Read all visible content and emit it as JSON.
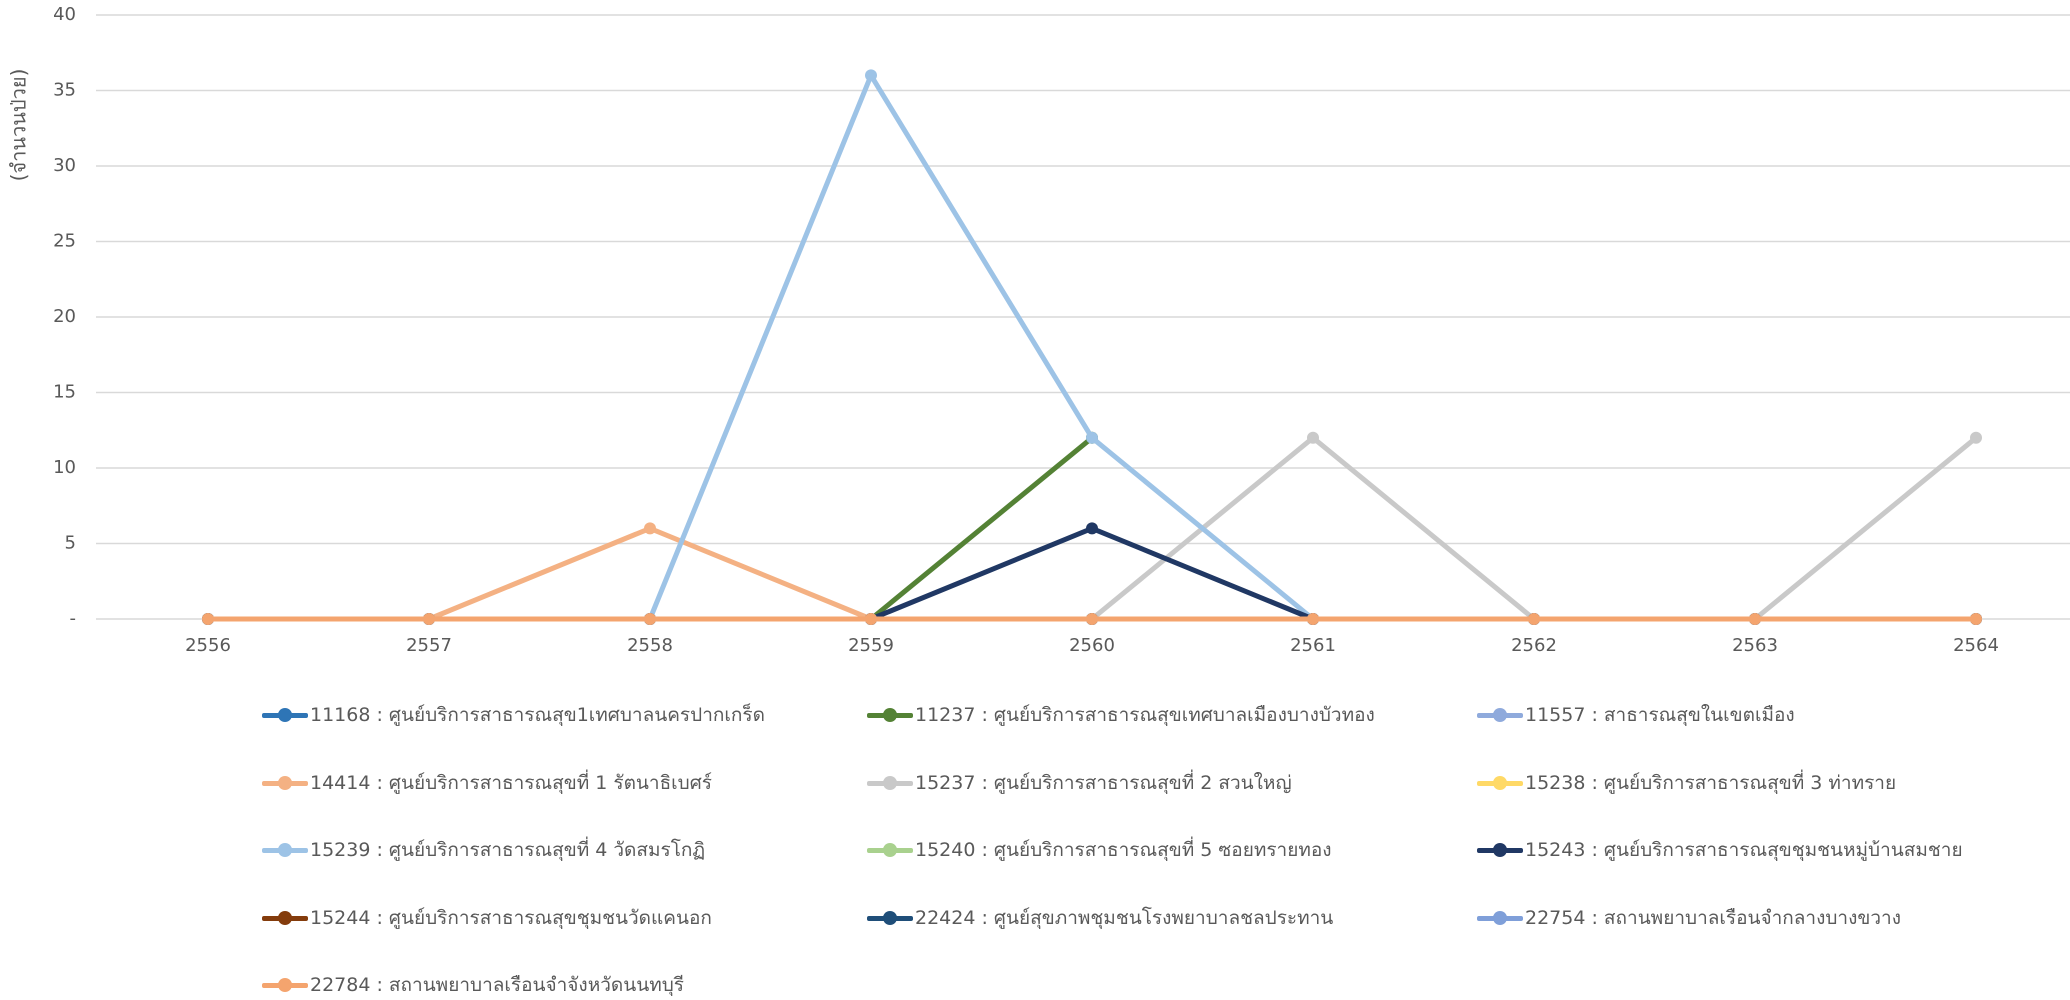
{
  "chart_data": {
    "type": "line",
    "title": "",
    "xlabel": "",
    "ylabel": "(จำนวนป่วย)",
    "x": [
      "2556",
      "2557",
      "2558",
      "2559",
      "2560",
      "2561",
      "2562",
      "2563",
      "2564"
    ],
    "ylim": [
      0,
      40
    ],
    "yticks": [
      "-",
      "5",
      "10",
      "15",
      "20",
      "25",
      "30",
      "35",
      "40"
    ],
    "grid": true,
    "legend_position": "bottom",
    "series": [
      {
        "name": "11168 : ศูนย์บริการสาธารณสุข1เทศบาลนครปากเกร็ด",
        "color": "#2E75B6",
        "values": [
          0,
          0,
          0,
          0,
          0,
          0,
          0,
          0,
          0
        ]
      },
      {
        "name": "11237 : ศูนย์บริการสาธารณสุขเทศบาลเมืองบางบัวทอง",
        "color": "#548235",
        "values": [
          null,
          null,
          null,
          0,
          12,
          null,
          null,
          null,
          null
        ]
      },
      {
        "name": "11557 : สาธารณสุขในเขตเมือง",
        "color": "#8FAADC",
        "values": [
          0,
          0,
          0,
          0,
          0,
          0,
          0,
          0,
          0
        ]
      },
      {
        "name": "14414 : ศูนย์บริการสาธารณสุขที่ 1 รัตนาธิเบศร์",
        "color": "#F4B183",
        "values": [
          0,
          0,
          6,
          0,
          0,
          0,
          0,
          0,
          0
        ]
      },
      {
        "name": "15237 : ศูนย์บริการสาธารณสุขที่ 2 สวนใหญ่",
        "color": "#C9C9C9",
        "values": [
          null,
          null,
          null,
          null,
          0,
          12,
          0,
          0,
          12
        ]
      },
      {
        "name": "15238 : ศูนย์บริการสาธารณสุขที่ 3 ท่าทราย",
        "color": "#FFD966",
        "values": [
          0,
          0,
          0,
          0,
          0,
          0,
          0,
          0,
          0
        ]
      },
      {
        "name": "15239 : ศูนย์บริการสาธารณสุขที่ 4 วัดสมรโกฏิ",
        "color": "#9DC3E6",
        "values": [
          null,
          null,
          0,
          36,
          12,
          0,
          null,
          null,
          null
        ]
      },
      {
        "name": "15240 : ศูนย์บริการสาธารณสุขที่ 5 ซอยทรายทอง",
        "color": "#A9D18E",
        "values": [
          0,
          0,
          0,
          0,
          0,
          0,
          0,
          0,
          0
        ]
      },
      {
        "name": "15243 : ศูนย์บริการสาธารณสุขชุมชนหมู่บ้านสมชาย",
        "color": "#203864",
        "values": [
          null,
          null,
          null,
          0,
          6,
          0,
          null,
          null,
          null
        ]
      },
      {
        "name": "15244 : ศูนย์บริการสาธารณสุขชุมชนวัดแคนอก",
        "color": "#843C0C",
        "values": [
          0,
          0,
          0,
          0,
          0,
          0,
          0,
          0,
          0
        ]
      },
      {
        "name": "22424 : ศูนย์สุขภาพชุมชนโรงพยาบาลชลประทาน",
        "color": "#1F4E79",
        "values": [
          0,
          0,
          0,
          0,
          0,
          0,
          0,
          0,
          0
        ]
      },
      {
        "name": "22754 : สถานพยาบาลเรือนจำกลางบางขวาง",
        "color": "#7F9FD9",
        "values": [
          0,
          0,
          0,
          0,
          0,
          0,
          0,
          0,
          0
        ]
      },
      {
        "name": "22784 : สถานพยาบาลเรือนจำจังหวัดนนทบุรี",
        "color": "#F4A46E",
        "values": [
          0,
          0,
          0,
          0,
          0,
          0,
          0,
          0,
          0
        ]
      }
    ]
  }
}
